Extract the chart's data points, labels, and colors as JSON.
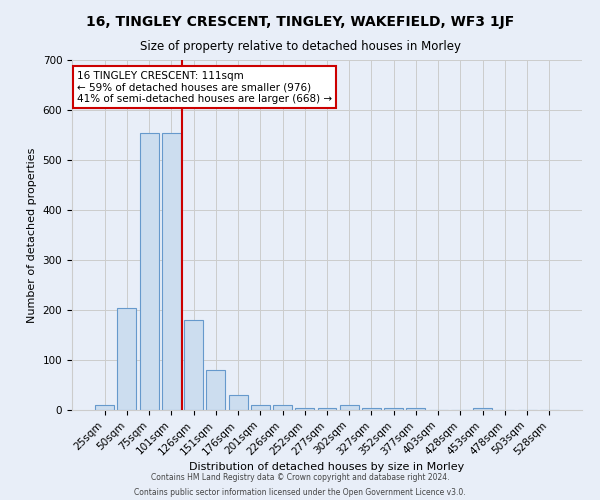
{
  "title": "16, TINGLEY CRESCENT, TINGLEY, WAKEFIELD, WF3 1JF",
  "subtitle": "Size of property relative to detached houses in Morley",
  "xlabel": "Distribution of detached houses by size in Morley",
  "ylabel": "Number of detached properties",
  "bar_labels": [
    "25sqm",
    "50sqm",
    "75sqm",
    "101sqm",
    "126sqm",
    "151sqm",
    "176sqm",
    "201sqm",
    "226sqm",
    "252sqm",
    "277sqm",
    "302sqm",
    "327sqm",
    "352sqm",
    "377sqm",
    "403sqm",
    "428sqm",
    "453sqm",
    "478sqm",
    "503sqm",
    "528sqm"
  ],
  "bar_heights": [
    10,
    205,
    555,
    555,
    180,
    80,
    30,
    10,
    10,
    5,
    5,
    10,
    5,
    5,
    5,
    0,
    0,
    5,
    0,
    0,
    0
  ],
  "bar_color": "#ccddef",
  "bar_edge_color": "#6699cc",
  "vline_x": 3.5,
  "vline_color": "#cc0000",
  "annotation_text": "16 TINGLEY CRESCENT: 111sqm\n← 59% of detached houses are smaller (976)\n41% of semi-detached houses are larger (668) →",
  "annotation_box_color": "#ffffff",
  "annotation_box_edge": "#cc0000",
  "ylim": [
    0,
    700
  ],
  "yticks": [
    0,
    100,
    200,
    300,
    400,
    500,
    600,
    700
  ],
  "grid_color": "#cccccc",
  "background_color": "#e8eef8",
  "footer_line1": "Contains HM Land Registry data © Crown copyright and database right 2024.",
  "footer_line2": "Contains public sector information licensed under the Open Government Licence v3.0."
}
